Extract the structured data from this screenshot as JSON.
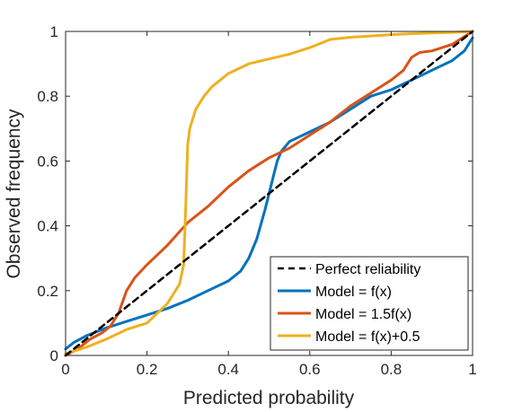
{
  "chart_data": {
    "type": "line",
    "xlabel": "Predicted probability",
    "ylabel": "Observed frequency",
    "xlim": [
      0,
      1
    ],
    "ylim": [
      0,
      1
    ],
    "xticks": [
      "0",
      "0.2",
      "0.4",
      "0.6",
      "0.8",
      "1"
    ],
    "yticks": [
      "0",
      "0.2",
      "0.4",
      "0.6",
      "0.8",
      "1"
    ],
    "grid": false,
    "legend_position": "bottom-right",
    "series": [
      {
        "name": "Perfect reliability",
        "color": "#000000",
        "dash": true,
        "x": [
          0,
          1
        ],
        "y": [
          0,
          1
        ]
      },
      {
        "name": "Model = f(x)",
        "color": "#0072BD",
        "x": [
          0,
          0.02,
          0.05,
          0.08,
          0.1,
          0.15,
          0.2,
          0.25,
          0.3,
          0.35,
          0.4,
          0.43,
          0.45,
          0.47,
          0.49,
          0.5,
          0.51,
          0.52,
          0.53,
          0.55,
          0.6,
          0.65,
          0.7,
          0.75,
          0.8,
          0.85,
          0.9,
          0.95,
          0.98,
          1.0
        ],
        "y": [
          0.02,
          0.04,
          0.06,
          0.075,
          0.085,
          0.105,
          0.125,
          0.145,
          0.17,
          0.2,
          0.23,
          0.26,
          0.3,
          0.36,
          0.45,
          0.5,
          0.55,
          0.6,
          0.63,
          0.66,
          0.69,
          0.72,
          0.76,
          0.8,
          0.82,
          0.85,
          0.88,
          0.91,
          0.94,
          0.98
        ]
      },
      {
        "name": "Model = 1.5f(x)",
        "color": "#D95319",
        "x": [
          0,
          0.03,
          0.06,
          0.09,
          0.11,
          0.13,
          0.15,
          0.17,
          0.2,
          0.25,
          0.3,
          0.35,
          0.4,
          0.45,
          0.5,
          0.55,
          0.6,
          0.65,
          0.7,
          0.75,
          0.8,
          0.83,
          0.85,
          0.87,
          0.9,
          0.95,
          1.0
        ],
        "y": [
          0,
          0.02,
          0.05,
          0.07,
          0.09,
          0.13,
          0.2,
          0.24,
          0.28,
          0.34,
          0.41,
          0.46,
          0.52,
          0.57,
          0.61,
          0.64,
          0.68,
          0.72,
          0.77,
          0.81,
          0.85,
          0.88,
          0.92,
          0.935,
          0.94,
          0.96,
          1.0
        ]
      },
      {
        "name": "Model = f(x)+0.5",
        "color": "#EDB120",
        "x": [
          0,
          0.05,
          0.1,
          0.15,
          0.2,
          0.25,
          0.28,
          0.29,
          0.295,
          0.3,
          0.305,
          0.31,
          0.32,
          0.34,
          0.36,
          0.4,
          0.45,
          0.5,
          0.55,
          0.6,
          0.65,
          0.7,
          0.75,
          0.8,
          0.85,
          0.9,
          0.95,
          1.0
        ],
        "y": [
          0.005,
          0.025,
          0.05,
          0.08,
          0.1,
          0.16,
          0.22,
          0.28,
          0.45,
          0.65,
          0.7,
          0.72,
          0.76,
          0.8,
          0.83,
          0.87,
          0.9,
          0.915,
          0.93,
          0.95,
          0.975,
          0.982,
          0.986,
          0.99,
          0.993,
          0.995,
          0.997,
          1.0
        ]
      }
    ]
  }
}
